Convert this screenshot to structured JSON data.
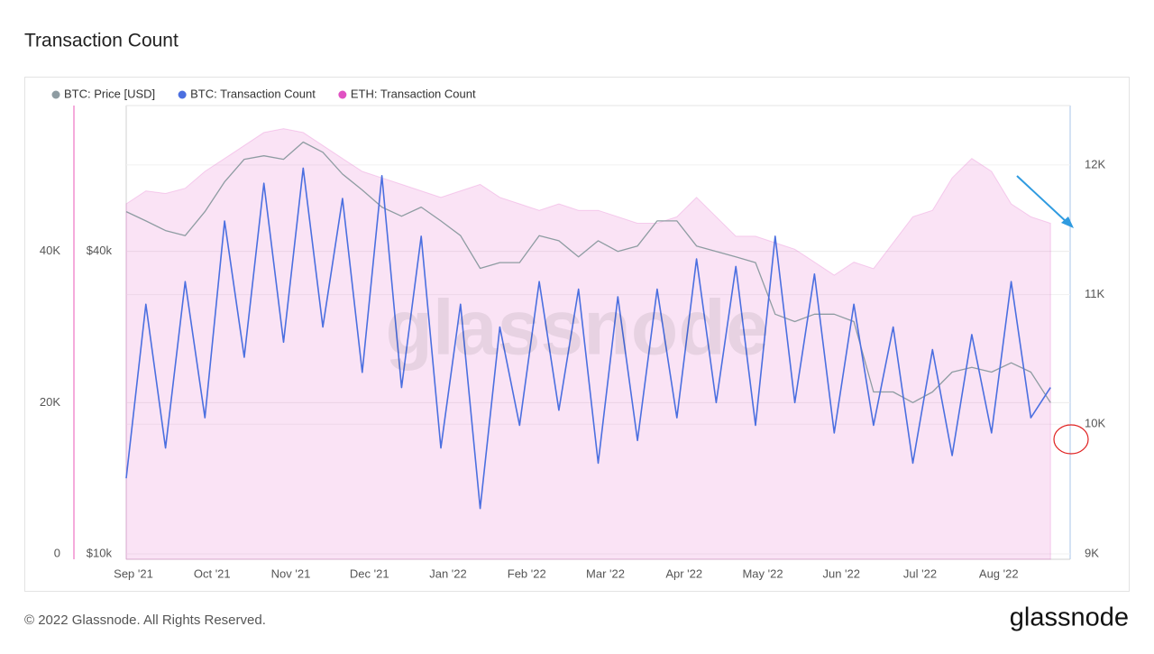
{
  "chart_data": {
    "type": "line",
    "title": "Transaction Count",
    "footer": "© 2022 Glassnode. All Rights Reserved.",
    "brand": "glassnode",
    "watermark": "glassnode",
    "x": [
      0,
      0.25,
      0.5,
      0.75,
      1,
      1.25,
      1.5,
      1.75,
      2,
      2.25,
      2.5,
      2.75,
      3,
      3.25,
      3.5,
      3.75,
      4,
      4.25,
      4.5,
      4.75,
      5,
      5.25,
      5.5,
      5.75,
      6,
      6.25,
      6.5,
      6.75,
      7,
      7.25,
      7.5,
      7.75,
      8,
      8.25,
      8.5,
      8.75,
      9,
      9.25,
      9.5,
      9.75,
      10,
      10.25,
      10.5,
      10.75,
      11,
      11.25,
      11.5,
      11.75
    ],
    "xlim": [
      0,
      12
    ],
    "xticks": [
      {
        "value": 0,
        "label": "Sep '21"
      },
      {
        "value": 1,
        "label": "Oct '21"
      },
      {
        "value": 2,
        "label": "Nov '21"
      },
      {
        "value": 3,
        "label": "Dec '21"
      },
      {
        "value": 4,
        "label": "Jan '22"
      },
      {
        "value": 5,
        "label": "Feb '22"
      },
      {
        "value": 6,
        "label": "Mar '22"
      },
      {
        "value": 7,
        "label": "Apr '22"
      },
      {
        "value": 8,
        "label": "May '22"
      },
      {
        "value": 9,
        "label": "Jun '22"
      },
      {
        "value": 10,
        "label": "Jul '22"
      },
      {
        "value": 11,
        "label": "Aug '22"
      }
    ],
    "ylim": [
      0,
      60000
    ],
    "yticks": [
      0,
      {
        "value": 20000,
        "label": "20K"
      },
      {
        "value": 40000,
        "label": "40K"
      }
    ],
    "y2lim": [
      9000,
      12500
    ],
    "y2ticks": [
      {
        "value": 9000,
        "label": "9K"
      },
      {
        "value": 10000,
        "label": "10K"
      },
      {
        "value": 11000,
        "label": "11K"
      },
      {
        "value": 12000,
        "label": "12K"
      }
    ],
    "y3lim": [
      10000,
      80000
    ],
    "y3scale": "log",
    "y3ticks": [
      {
        "value": 10000,
        "label": "$10k"
      },
      {
        "value": 40000,
        "label": "$40k"
      }
    ],
    "grid": true,
    "legend": "top-left",
    "series": [
      {
        "name": "BTC: Price [USD]",
        "color": "#8e9ca2",
        "axis": "y3",
        "style": "line",
        "values": [
          48000,
          46000,
          44000,
          43000,
          48000,
          55000,
          61000,
          62000,
          61000,
          66000,
          63000,
          57000,
          53000,
          49000,
          47000,
          49000,
          46000,
          43000,
          37000,
          38000,
          38000,
          43000,
          42000,
          39000,
          42000,
          40000,
          41000,
          46000,
          46000,
          41000,
          40000,
          39000,
          38000,
          30000,
          29000,
          30000,
          30000,
          29000,
          21000,
          21000,
          20000,
          21000,
          23000,
          23500,
          23000,
          24000,
          23000,
          20000
        ]
      },
      {
        "name": "BTC: Transaction Count",
        "color": "#4b6fe0",
        "style": "line",
        "values": [
          10000,
          33000,
          14000,
          36000,
          18000,
          44000,
          26000,
          49000,
          28000,
          51000,
          30000,
          47000,
          24000,
          50000,
          22000,
          42000,
          14000,
          33000,
          6000,
          30000,
          17000,
          36000,
          19000,
          35000,
          12000,
          34000,
          15000,
          35000,
          18000,
          39000,
          20000,
          38000,
          17000,
          42000,
          20000,
          37000,
          16000,
          33000,
          17000,
          30000,
          12000,
          27000,
          13000,
          29000,
          16000,
          36000,
          18000,
          22000
        ]
      },
      {
        "name": "ETH: Transaction Count",
        "color": "#e052c2",
        "axis": "y2",
        "style": "area",
        "values": [
          11700,
          11800,
          11780,
          11820,
          11950,
          12050,
          12150,
          12250,
          12280,
          12250,
          12150,
          12050,
          11950,
          11900,
          11850,
          11800,
          11750,
          11800,
          11850,
          11750,
          11700,
          11650,
          11700,
          11650,
          11650,
          11600,
          11550,
          11550,
          11600,
          11750,
          11600,
          11450,
          11450,
          11400,
          11350,
          11250,
          11150,
          11250,
          11200,
          11400,
          11600,
          11650,
          11900,
          12050,
          11950,
          11700,
          11600,
          11550
        ]
      }
    ]
  }
}
